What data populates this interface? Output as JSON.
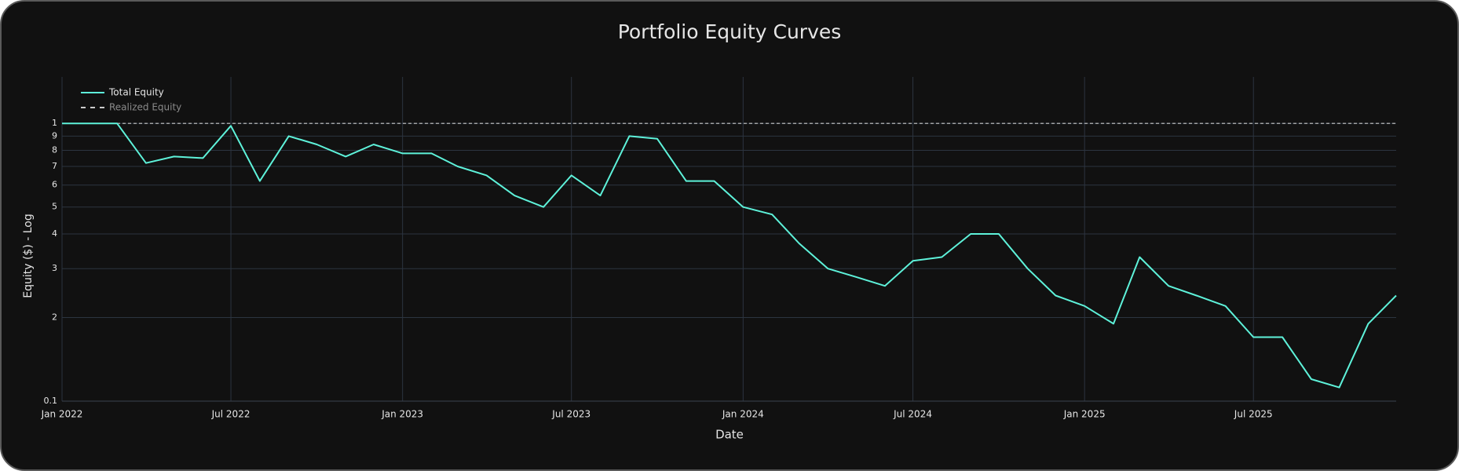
{
  "chart_data": {
    "type": "line",
    "title": "Portfolio Equity Curves",
    "x_label": "Date",
    "y_label": "Equity ($) - Log",
    "log_y": true,
    "grid": true,
    "legend_position": "top-left",
    "xlim": [
      "2022-01",
      "2025-12"
    ],
    "xticks": [
      {
        "value": "2022-01",
        "label": "Jan 2022"
      },
      {
        "value": "2022-07",
        "label": "Jul 2022"
      },
      {
        "value": "2023-01",
        "label": "Jan 2023"
      },
      {
        "value": "2023-07",
        "label": "Jul 2023"
      },
      {
        "value": "2024-01",
        "label": "Jan 2024"
      },
      {
        "value": "2024-07",
        "label": "Jul 2024"
      },
      {
        "value": "2025-01",
        "label": "Jan 2025"
      },
      {
        "value": "2025-07",
        "label": "Jul 2025"
      }
    ],
    "ylim": [
      0.1,
      1.47
    ],
    "yticks": [
      0.1,
      {
        "value": 0.2,
        "label": "2"
      },
      {
        "value": 0.3,
        "label": "3"
      },
      {
        "value": 0.4,
        "label": "4"
      },
      {
        "value": 0.5,
        "label": "5"
      },
      {
        "value": 0.6,
        "label": "6"
      },
      {
        "value": 0.7,
        "label": "7"
      },
      {
        "value": 0.8,
        "label": "8"
      },
      {
        "value": 0.9,
        "label": "9"
      },
      1
    ],
    "x": [
      "2022-01",
      "2022-02",
      "2022-03",
      "2022-04",
      "2022-05",
      "2022-06",
      "2022-07",
      "2022-08",
      "2022-09",
      "2022-10",
      "2022-11",
      "2022-12",
      "2023-01",
      "2023-02",
      "2023-03",
      "2023-04",
      "2023-05",
      "2023-06",
      "2023-07",
      "2023-08",
      "2023-09",
      "2023-10",
      "2023-11",
      "2023-12",
      "2024-01",
      "2024-02",
      "2024-03",
      "2024-04",
      "2024-05",
      "2024-06",
      "2024-07",
      "2024-08",
      "2024-09",
      "2024-10",
      "2024-11",
      "2024-12",
      "2025-01",
      "2025-02",
      "2025-03",
      "2025-04",
      "2025-05",
      "2025-06",
      "2025-07",
      "2025-08",
      "2025-09",
      "2025-10",
      "2025-11",
      "2025-12"
    ],
    "series": [
      {
        "name": "Total Equity",
        "color": "#5ef2da",
        "dash": false,
        "values": [
          1.0,
          1.0,
          1.0,
          0.72,
          0.76,
          0.75,
          0.98,
          0.62,
          0.9,
          0.84,
          0.76,
          0.84,
          0.78,
          0.78,
          0.7,
          0.65,
          0.55,
          0.5,
          0.65,
          0.55,
          0.9,
          0.88,
          0.62,
          0.62,
          0.5,
          0.47,
          0.37,
          0.3,
          0.28,
          0.26,
          0.32,
          0.33,
          0.4,
          0.4,
          0.3,
          0.24,
          0.22,
          0.19,
          0.33,
          0.26,
          0.24,
          0.22,
          0.17,
          0.17,
          0.12,
          0.112,
          0.19,
          0.24
        ]
      },
      {
        "name": "Realized Equity",
        "color": "#cccccc",
        "dash": true,
        "values": [
          1,
          1,
          1,
          1,
          1,
          1,
          1,
          1,
          1,
          1,
          1,
          1,
          1,
          1,
          1,
          1,
          1,
          1,
          1,
          1,
          1,
          1,
          1,
          1,
          1,
          1,
          1,
          1,
          1,
          1,
          1,
          1,
          1,
          1,
          1,
          1,
          1,
          1,
          1,
          1,
          1,
          1,
          1,
          1,
          1,
          1,
          1,
          1
        ]
      }
    ]
  }
}
